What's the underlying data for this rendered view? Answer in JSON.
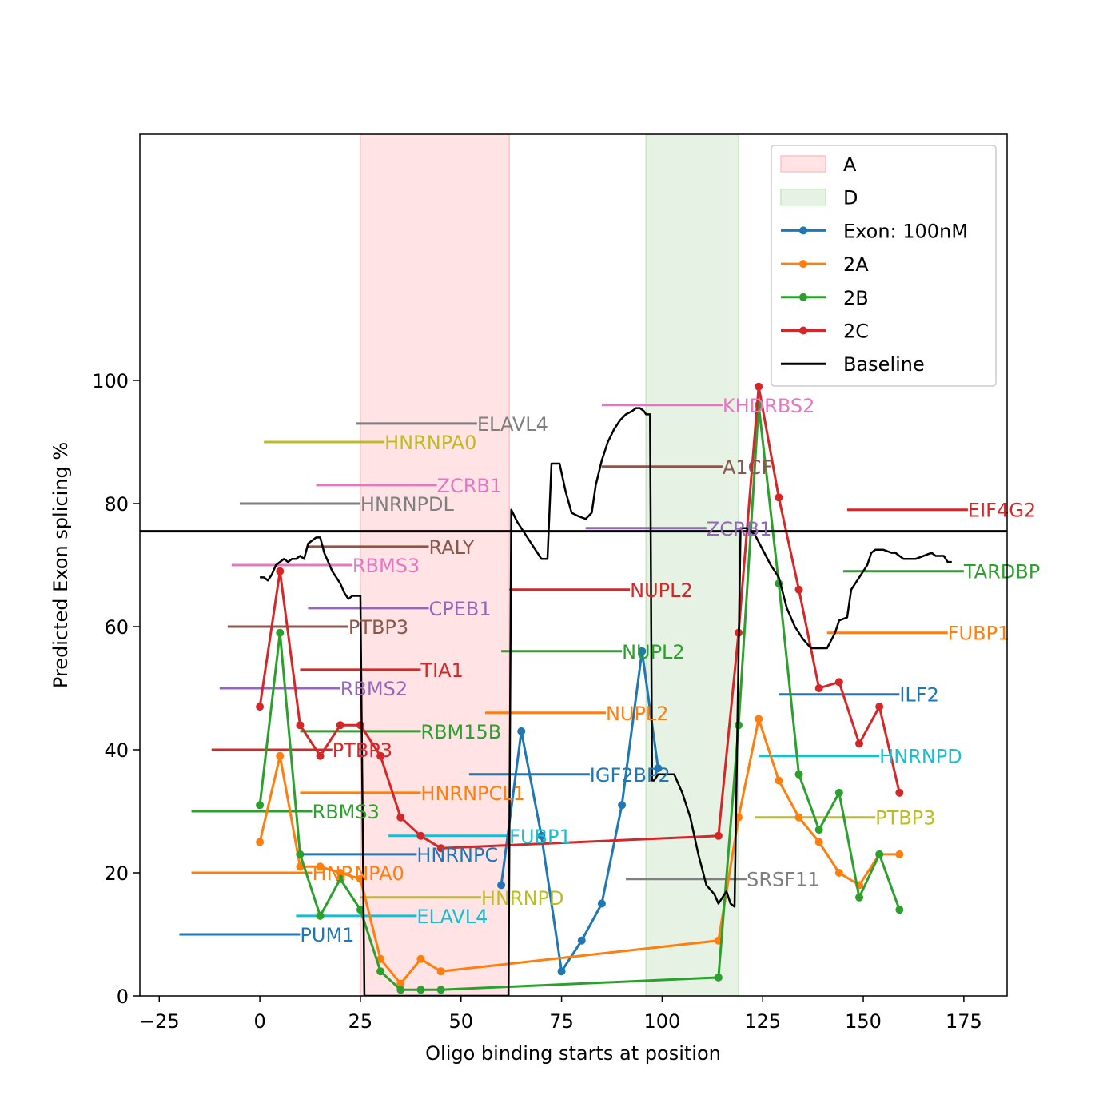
{
  "chart_data": {
    "type": "line",
    "title": "",
    "xlabel": "Oligo binding starts at position",
    "ylabel": "Predicted Exon splicing %",
    "xlim": [
      -30,
      185
    ],
    "ylim": [
      0,
      140
    ],
    "xticks": [
      -25,
      0,
      25,
      50,
      75,
      100,
      125,
      150,
      175
    ],
    "yticks": [
      0,
      20,
      40,
      60,
      80,
      100
    ],
    "grid": false,
    "legend_position": "top-right",
    "reference_line": {
      "y": 75.5,
      "color": "#000000"
    },
    "regions": [
      {
        "name": "A",
        "x": [
          25,
          62
        ],
        "color": "#ffc0c6"
      },
      {
        "name": "D",
        "x": [
          96,
          119
        ],
        "color": "#c8e4c4"
      }
    ],
    "series": [
      {
        "name": "Exon: 100nM",
        "color": "#1f77b4",
        "marker": true,
        "points": [
          [
            60,
            18
          ],
          [
            65,
            43
          ],
          [
            70,
            26
          ],
          [
            75,
            4
          ],
          [
            80,
            9
          ],
          [
            85,
            15
          ],
          [
            90,
            31
          ],
          [
            95,
            56
          ],
          [
            99,
            37
          ]
        ]
      },
      {
        "name": "2A",
        "color": "#ff7f0e",
        "marker": true,
        "points": [
          [
            0,
            25
          ],
          [
            5,
            39
          ],
          [
            10,
            21
          ],
          [
            15,
            21
          ],
          [
            20,
            20
          ],
          [
            25,
            19
          ],
          [
            30,
            6
          ],
          [
            35,
            2
          ],
          [
            40,
            6
          ],
          [
            45,
            4
          ],
          [
            114,
            9
          ],
          [
            119,
            29
          ],
          [
            124,
            45
          ],
          [
            129,
            35
          ],
          [
            134,
            29
          ],
          [
            139,
            25
          ],
          [
            144,
            20
          ],
          [
            149,
            18
          ],
          [
            154,
            23
          ],
          [
            159,
            23
          ]
        ]
      },
      {
        "name": "2B",
        "color": "#2ca02c",
        "marker": true,
        "points": [
          [
            0,
            31
          ],
          [
            5,
            59
          ],
          [
            10,
            23
          ],
          [
            15,
            13
          ],
          [
            20,
            19
          ],
          [
            25,
            14
          ],
          [
            30,
            4
          ],
          [
            35,
            1
          ],
          [
            40,
            1
          ],
          [
            45,
            1
          ],
          [
            114,
            3
          ],
          [
            119,
            44
          ],
          [
            124,
            96
          ],
          [
            129,
            67
          ],
          [
            134,
            36
          ],
          [
            139,
            27
          ],
          [
            144,
            33
          ],
          [
            149,
            16
          ],
          [
            154,
            23
          ],
          [
            159,
            14
          ]
        ]
      },
      {
        "name": "2C",
        "color": "#d62728",
        "marker": true,
        "points": [
          [
            0,
            47
          ],
          [
            5,
            69
          ],
          [
            10,
            44
          ],
          [
            15,
            39
          ],
          [
            20,
            44
          ],
          [
            25,
            44
          ],
          [
            30,
            39
          ],
          [
            35,
            29
          ],
          [
            40,
            26
          ],
          [
            45,
            24
          ],
          [
            114,
            26
          ],
          [
            119,
            59
          ],
          [
            124,
            99
          ],
          [
            129,
            81
          ],
          [
            134,
            66
          ],
          [
            139,
            50
          ],
          [
            144,
            51
          ],
          [
            149,
            41
          ],
          [
            154,
            47
          ],
          [
            159,
            33
          ]
        ]
      },
      {
        "name": "Baseline",
        "color": "#000000",
        "marker": false,
        "points": [
          [
            0,
            68
          ],
          [
            1,
            68
          ],
          [
            2,
            67.5
          ],
          [
            3,
            68.5
          ],
          [
            4,
            70
          ],
          [
            5,
            70.5
          ],
          [
            6,
            71
          ],
          [
            7,
            70.5
          ],
          [
            8,
            71
          ],
          [
            9,
            71
          ],
          [
            10,
            71.5
          ],
          [
            11,
            71
          ],
          [
            12,
            73.5
          ],
          [
            13,
            74
          ],
          [
            14,
            74.5
          ],
          [
            15,
            74.5
          ],
          [
            16,
            72
          ],
          [
            17,
            70.5
          ],
          [
            18,
            69
          ],
          [
            19,
            68
          ],
          [
            20,
            67
          ],
          [
            21,
            65.5
          ],
          [
            22,
            64.5
          ],
          [
            23,
            65
          ],
          [
            24,
            65
          ],
          [
            25,
            65
          ],
          [
            26,
            0
          ],
          [
            27,
            0
          ],
          [
            61.8,
            0
          ],
          [
            62.5,
            79
          ],
          [
            64,
            77
          ],
          [
            66,
            75
          ],
          [
            68,
            73
          ],
          [
            70,
            71
          ],
          [
            71.5,
            71
          ],
          [
            72.5,
            86.5
          ],
          [
            74.5,
            86.5
          ],
          [
            76,
            82
          ],
          [
            77.5,
            78.5
          ],
          [
            79,
            78
          ],
          [
            81,
            77.5
          ],
          [
            82.5,
            78.5
          ],
          [
            83.5,
            83
          ],
          [
            85,
            87
          ],
          [
            86.5,
            90
          ],
          [
            88,
            92
          ],
          [
            89.5,
            93.5
          ],
          [
            91,
            94.5
          ],
          [
            92.5,
            95
          ],
          [
            93.5,
            95.5
          ],
          [
            94.5,
            95.5
          ],
          [
            95.5,
            95
          ],
          [
            96,
            94.5
          ],
          [
            97,
            94.5
          ],
          [
            97.5,
            35
          ],
          [
            98,
            35
          ],
          [
            99,
            36
          ],
          [
            100,
            36
          ],
          [
            101,
            36
          ],
          [
            103,
            36
          ],
          [
            105,
            33
          ],
          [
            107,
            29
          ],
          [
            109,
            23
          ],
          [
            111,
            18
          ],
          [
            113,
            16.5
          ],
          [
            114,
            15
          ],
          [
            115,
            16
          ],
          [
            116,
            17
          ],
          [
            117,
            15
          ],
          [
            118,
            14.5
          ],
          [
            119.5,
            76
          ],
          [
            121,
            76
          ],
          [
            123,
            75
          ],
          [
            125,
            72.5
          ],
          [
            127,
            70
          ],
          [
            129,
            68
          ],
          [
            131,
            63
          ],
          [
            133,
            60
          ],
          [
            135,
            58
          ],
          [
            137,
            56.5
          ],
          [
            139,
            56.5
          ],
          [
            141,
            56.5
          ],
          [
            143,
            59
          ],
          [
            144,
            61
          ],
          [
            146,
            61.5
          ],
          [
            147,
            66
          ],
          [
            149,
            68
          ],
          [
            151,
            70
          ],
          [
            152,
            72
          ],
          [
            153,
            72.5
          ],
          [
            155,
            72.5
          ],
          [
            157,
            72
          ],
          [
            158,
            72
          ],
          [
            159,
            71.5
          ],
          [
            160,
            71
          ],
          [
            161,
            71
          ],
          [
            162,
            71
          ],
          [
            163,
            71
          ],
          [
            165,
            71.5
          ],
          [
            167,
            72
          ],
          [
            168,
            71.5
          ],
          [
            169,
            71.5
          ],
          [
            170,
            71.5
          ],
          [
            171,
            70.5
          ],
          [
            172,
            70.5
          ]
        ]
      }
    ],
    "annotations": [
      {
        "text": "ELAVL4",
        "x1": 24,
        "x2": 54,
        "y": 93,
        "color": "#7f7f7f"
      },
      {
        "text": "HNRNPA0",
        "x1": 1,
        "x2": 31,
        "y": 90,
        "color": "#bcbd22"
      },
      {
        "text": "ZCRB1",
        "x1": 14,
        "x2": 44,
        "y": 83,
        "color": "#e377c2"
      },
      {
        "text": "HNRNPDL",
        "x1": -5,
        "x2": 25,
        "y": 80,
        "color": "#7f7f7f"
      },
      {
        "text": "RALY",
        "x1": 12,
        "x2": 42,
        "y": 73,
        "color": "#8c564b"
      },
      {
        "text": "RBMS3",
        "x1": -7,
        "x2": 23,
        "y": 70,
        "color": "#e377c2"
      },
      {
        "text": "CPEB1",
        "x1": 12,
        "x2": 42,
        "y": 63,
        "color": "#9467bd"
      },
      {
        "text": "PTBP3",
        "x1": -8,
        "x2": 22,
        "y": 60,
        "color": "#8c564b"
      },
      {
        "text": "TIA1",
        "x1": 10,
        "x2": 40,
        "y": 53,
        "color": "#d62728"
      },
      {
        "text": "RBMS2",
        "x1": -10,
        "x2": 20,
        "y": 50,
        "color": "#9467bd"
      },
      {
        "text": "RBM15B",
        "x1": 10,
        "x2": 40,
        "y": 43,
        "color": "#2ca02c"
      },
      {
        "text": "PTBP3",
        "x1": -12,
        "x2": 18,
        "y": 40,
        "color": "#d62728"
      },
      {
        "text": "HNRNPCL1",
        "x1": 10,
        "x2": 40,
        "y": 33,
        "color": "#ff7f0e"
      },
      {
        "text": "RBMS3",
        "x1": -17,
        "x2": 13,
        "y": 30,
        "color": "#2ca02c"
      },
      {
        "text": "FUBP1",
        "x1": 32,
        "x2": 62,
        "y": 26,
        "color": "#17becf"
      },
      {
        "text": "HNRNPC",
        "x1": 9,
        "x2": 39,
        "y": 23,
        "color": "#1f77b4"
      },
      {
        "text": "HNRNPA0",
        "x1": -17,
        "x2": 13,
        "y": 20,
        "color": "#ff7f0e"
      },
      {
        "text": "HNRNPD",
        "x1": 25,
        "x2": 55,
        "y": 16,
        "color": "#bcbd22"
      },
      {
        "text": "ELAVL4",
        "x1": 9,
        "x2": 39,
        "y": 13,
        "color": "#17becf"
      },
      {
        "text": "PUM1",
        "x1": -20,
        "x2": 10,
        "y": 10,
        "color": "#1f77b4"
      },
      {
        "text": "KHDRBS2",
        "x1": 85,
        "x2": 115,
        "y": 96,
        "color": "#e377c2"
      },
      {
        "text": "A1CF",
        "x1": 85,
        "x2": 115,
        "y": 86,
        "color": "#8c564b"
      },
      {
        "text": "ZCRB1",
        "x1": 81,
        "x2": 111,
        "y": 76,
        "color": "#9467bd"
      },
      {
        "text": "NUPL2",
        "x1": 62,
        "x2": 92,
        "y": 66,
        "color": "#d62728"
      },
      {
        "text": "NUPL2",
        "x1": 60,
        "x2": 90,
        "y": 56,
        "color": "#2ca02c"
      },
      {
        "text": "NUPL2",
        "x1": 56,
        "x2": 86,
        "y": 46,
        "color": "#ff7f0e"
      },
      {
        "text": "IGF2BP2",
        "x1": 52,
        "x2": 82,
        "y": 36,
        "color": "#1f77b4"
      },
      {
        "text": "SRSF11",
        "x1": 91,
        "x2": 121,
        "y": 19,
        "color": "#7f7f7f"
      },
      {
        "text": "EIF4G2",
        "x1": 146,
        "x2": 176,
        "y": 79,
        "color": "#d62728"
      },
      {
        "text": "TARDBP",
        "x1": 145,
        "x2": 175,
        "y": 69,
        "color": "#2ca02c"
      },
      {
        "text": "FUBP1",
        "x1": 141,
        "x2": 171,
        "y": 59,
        "color": "#ff7f0e"
      },
      {
        "text": "ILF2",
        "x1": 129,
        "x2": 159,
        "y": 49,
        "color": "#1f77b4"
      },
      {
        "text": "HNRNPD",
        "x1": 124,
        "x2": 154,
        "y": 39,
        "color": "#17becf"
      },
      {
        "text": "PTBP3",
        "x1": 123,
        "x2": 153,
        "y": 29,
        "color": "#bcbd22"
      }
    ]
  }
}
